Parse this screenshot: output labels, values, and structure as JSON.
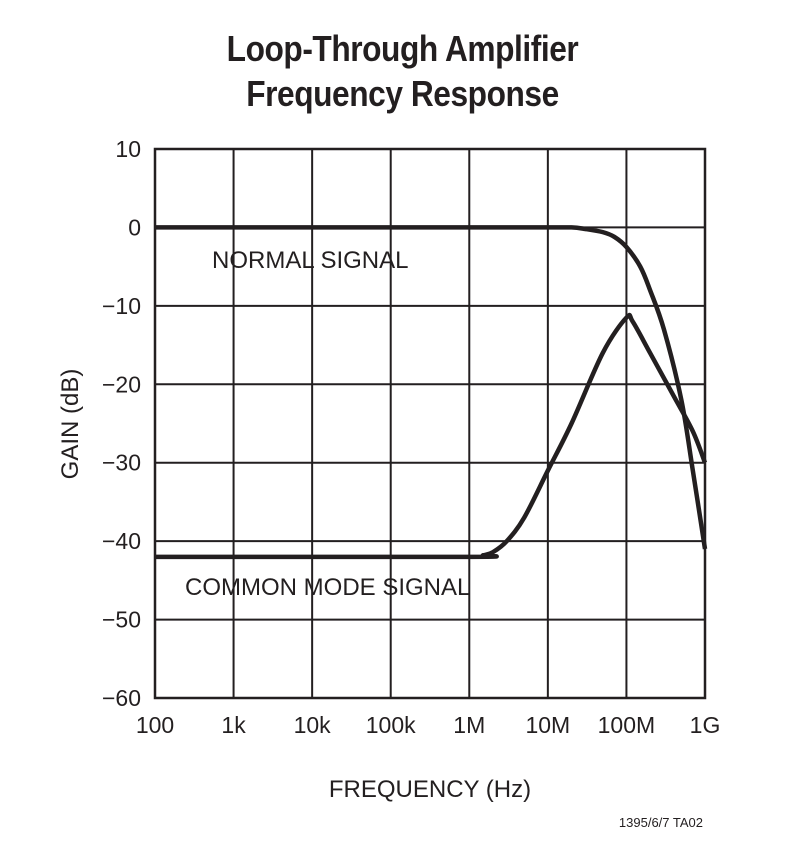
{
  "chart_data": {
    "type": "line",
    "title": "Loop-Through Amplifier",
    "subtitle": "Frequency Response",
    "xlabel": "FREQUENCY (Hz)",
    "ylabel": "GAIN (dB)",
    "x_scale": "log",
    "xlim": [
      100,
      1000000000
    ],
    "ylim": [
      -60,
      10
    ],
    "grid": true,
    "x_ticks": [
      100,
      1000,
      10000,
      100000,
      1000000,
      10000000,
      100000000,
      1000000000
    ],
    "x_tick_labels": [
      "100",
      "1k",
      "10k",
      "100k",
      "1M",
      "10M",
      "100M",
      "1G"
    ],
    "y_ticks": [
      10,
      0,
      -10,
      -20,
      -30,
      -40,
      -50,
      -60
    ],
    "y_tick_labels": [
      "10",
      "0",
      "−10",
      "−20",
      "−30",
      "−40",
      "−50",
      "−60"
    ],
    "series": [
      {
        "name": "NORMAL SIGNAL",
        "x": [
          100,
          1000000,
          10000000,
          20000000,
          30000000,
          50000000,
          70000000,
          100000000,
          150000000,
          200000000,
          300000000,
          500000000,
          700000000,
          1000000000
        ],
        "y": [
          0,
          0,
          0,
          0,
          -0.2,
          -0.6,
          -1.2,
          -2.5,
          -5,
          -8,
          -13,
          -22,
          -31,
          -41
        ]
      },
      {
        "name": "COMMON MODE SIGNAL",
        "x": [
          100,
          1000000,
          1500000,
          2000000,
          3000000,
          5000000,
          10000000,
          20000000,
          50000000,
          100000000,
          120000000,
          200000000,
          400000000,
          700000000,
          1000000000
        ],
        "y": [
          -42,
          -42,
          -41.8,
          -41.4,
          -40,
          -37,
          -31,
          -25,
          -16,
          -11.5,
          -12,
          -16,
          -21.5,
          -26,
          -30
        ]
      }
    ],
    "annotations": [
      "NORMAL SIGNAL",
      "COMMON MODE SIGNAL"
    ]
  },
  "figure_code": "1395/6/7 TA02"
}
